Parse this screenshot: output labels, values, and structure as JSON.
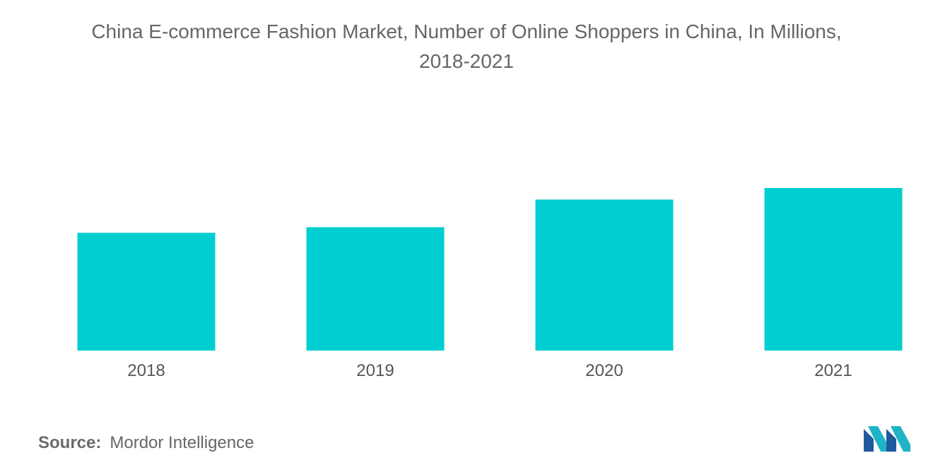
{
  "chart_data": {
    "type": "bar",
    "title": "China E-commerce Fashion Market, Number of Online Shoppers in China, In Millions,\n2018-2021",
    "categories": [
      "2018",
      "2019",
      "2020",
      "2021"
    ],
    "values": [
      610,
      639,
      782,
      842
    ],
    "xlabel": "",
    "ylabel": "",
    "ylim": [
      0,
      842
    ],
    "grid": false,
    "legend": "none",
    "bar_color": "#00ced1"
  },
  "footer": {
    "source_label": "Source:",
    "source_value": "Mordor Intelligence"
  },
  "logo": {
    "icon": "mordor-intelligence-logo",
    "colors": [
      "#1f5a9e",
      "#1fb3c6"
    ]
  }
}
